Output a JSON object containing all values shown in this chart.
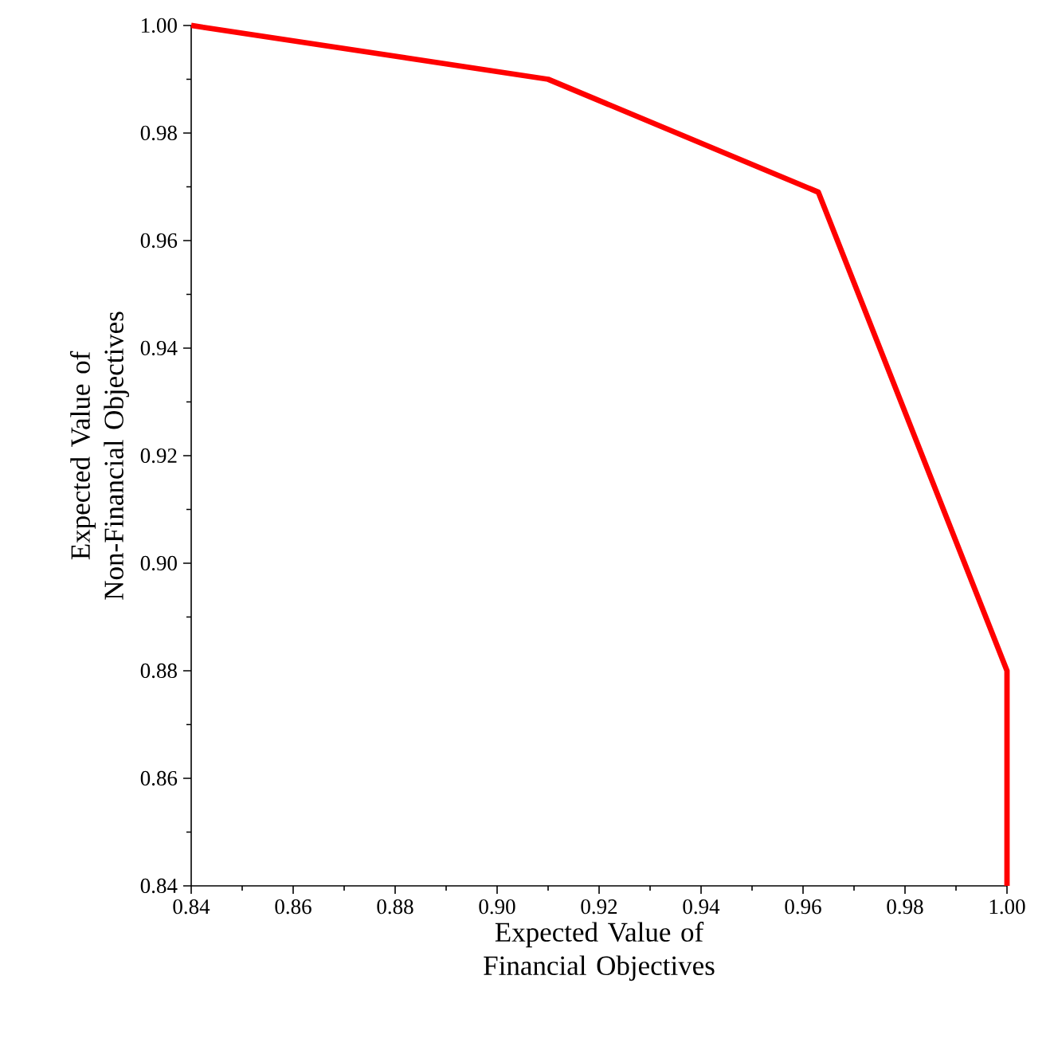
{
  "chart_data": {
    "type": "line",
    "xlabel": "Expected Value of Financial Objectives",
    "ylabel": "Expected Value of Non-Financial Objectives",
    "x": [
      0.84,
      0.91,
      0.963,
      1.0,
      1.0
    ],
    "series": [
      {
        "color": "#ff0000",
        "values": [
          1.0,
          0.99,
          0.969,
          0.88,
          0.84
        ]
      }
    ],
    "xlim": [
      0.84,
      1.0
    ],
    "ylim": [
      0.84,
      1.0
    ],
    "xticks": [
      {
        "value": 0.84,
        "label": "0.84"
      },
      {
        "value": 0.86,
        "label": "0.86"
      },
      {
        "value": 0.88,
        "label": "0.88"
      },
      {
        "value": 0.9,
        "label": "0.90"
      },
      {
        "value": 0.92,
        "label": "0.92"
      },
      {
        "value": 0.94,
        "label": "0.94"
      },
      {
        "value": 0.96,
        "label": "0.96"
      },
      {
        "value": 0.98,
        "label": "0.98"
      },
      {
        "value": 1.0,
        "label": "1.00"
      }
    ],
    "yticks": [
      {
        "value": 0.84,
        "label": "0.84"
      },
      {
        "value": 0.86,
        "label": "0.86"
      },
      {
        "value": 0.88,
        "label": "0.88"
      },
      {
        "value": 0.9,
        "label": "0.90"
      },
      {
        "value": 0.92,
        "label": "0.92"
      },
      {
        "value": 0.94,
        "label": "0.94"
      },
      {
        "value": 0.96,
        "label": "0.96"
      },
      {
        "value": 0.98,
        "label": "0.98"
      },
      {
        "value": 1.0,
        "label": "1.00"
      }
    ],
    "grid": false,
    "marker": "none",
    "line_style": "solid"
  }
}
